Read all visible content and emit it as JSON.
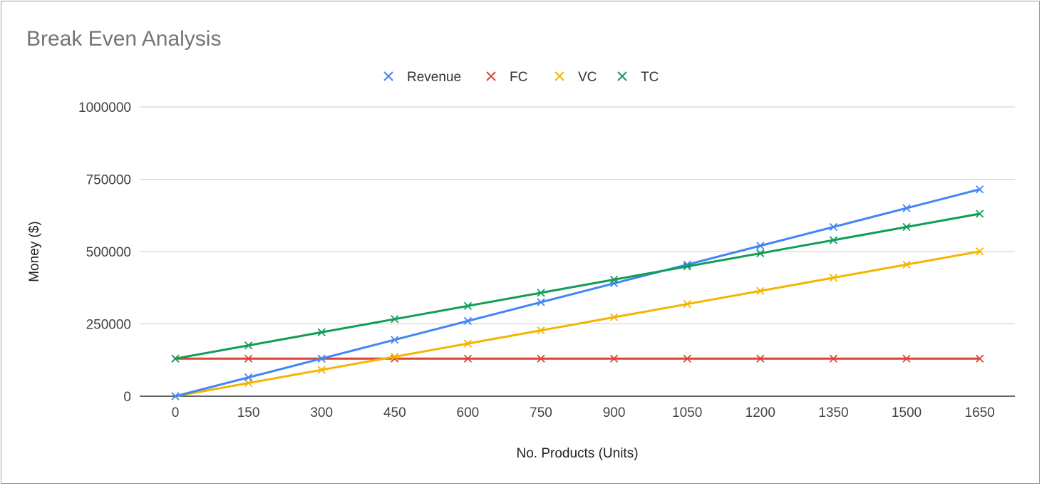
{
  "chart_data": {
    "type": "line",
    "title": "Break Even Analysis",
    "xlabel": "No. Products (Units)",
    "ylabel": "Money ($)",
    "categories": [
      0,
      150,
      300,
      450,
      600,
      750,
      900,
      1050,
      1200,
      1350,
      1500,
      1650
    ],
    "y_ticks": [
      0,
      250000,
      500000,
      750000,
      1000000
    ],
    "ylim": [
      0,
      1000000
    ],
    "grid": true,
    "legend_position": "top-center",
    "marker": "x",
    "series": [
      {
        "name": "Revenue",
        "color": "#4285f4",
        "values": [
          0,
          65000,
          130000,
          195000,
          260000,
          325000,
          390000,
          455000,
          520000,
          585000,
          650000,
          715000
        ]
      },
      {
        "name": "FC",
        "color": "#db4437",
        "values": [
          130000,
          130000,
          130000,
          130000,
          130000,
          130000,
          130000,
          130000,
          130000,
          130000,
          130000,
          130000
        ]
      },
      {
        "name": "VC",
        "color": "#f4b400",
        "values": [
          0,
          45500,
          91000,
          136500,
          182000,
          227500,
          273000,
          318500,
          364000,
          409500,
          455000,
          500500
        ]
      },
      {
        "name": "TC",
        "color": "#0f9d58",
        "values": [
          130000,
          175500,
          221000,
          266500,
          312000,
          357500,
          403000,
          448500,
          494000,
          539500,
          585000,
          630500
        ]
      }
    ]
  }
}
